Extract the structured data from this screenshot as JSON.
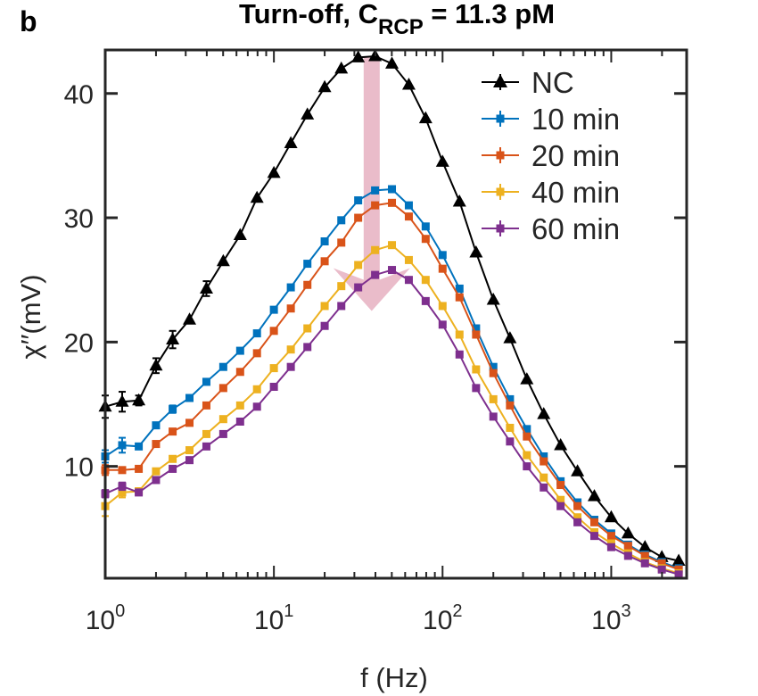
{
  "panel_label": "b",
  "title_main": "Turn-off, C",
  "title_sub": "RCP",
  "title_rest": " = 11.3 pM",
  "colors": {
    "NC": "#000000",
    "10 min": "#0072BD",
    "20 min": "#D95319",
    "40 min": "#EDB120",
    "60 min": "#7E2F8E",
    "arrow": "#E8B5C4",
    "axis": "#262626"
  },
  "chart_data": {
    "type": "line",
    "xscale": "log",
    "xlim": [
      1,
      2800
    ],
    "ylim": [
      1,
      43.5
    ],
    "xlabel": "f (Hz)",
    "ylabel": "χ′′(mV)",
    "x_ticks": [
      {
        "base": "10",
        "exp": "0",
        "value": 1
      },
      {
        "base": "10",
        "exp": "1",
        "value": 10
      },
      {
        "base": "10",
        "exp": "2",
        "value": 100
      },
      {
        "base": "10",
        "exp": "3",
        "value": 1000
      }
    ],
    "y_ticks": [
      "10",
      "20",
      "30",
      "40"
    ],
    "grid": false,
    "legend_position": "top-right",
    "x": [
      1,
      1.26,
      1.58,
      2.0,
      2.51,
      3.16,
      3.98,
      5.01,
      6.31,
      7.94,
      10.0,
      12.6,
      15.8,
      20.0,
      25.1,
      31.6,
      39.8,
      50.1,
      63.1,
      79.4,
      100,
      126,
      158,
      200,
      251,
      316,
      398,
      501,
      631,
      794,
      1000,
      1259,
      1585,
      1995,
      2512
    ],
    "series": [
      {
        "name": "NC",
        "marker": "triangle",
        "values": [
          14.8,
          15.2,
          15.3,
          18.1,
          20.2,
          21.8,
          24.3,
          26.5,
          28.6,
          31.6,
          33.6,
          36.0,
          38.3,
          40.5,
          42.0,
          42.9,
          43.0,
          42.4,
          40.7,
          38.0,
          34.5,
          31.3,
          27.2,
          23.4,
          20.3,
          17.0,
          14.2,
          11.7,
          9.6,
          7.6,
          5.9,
          4.6,
          3.5,
          2.7,
          2.4
        ]
      },
      {
        "name": "10 min",
        "marker": "square",
        "values": [
          10.8,
          11.7,
          11.6,
          13.3,
          14.6,
          15.5,
          16.8,
          18.0,
          19.3,
          20.7,
          22.6,
          24.4,
          26.3,
          28.1,
          29.8,
          31.4,
          32.2,
          32.3,
          31.0,
          29.3,
          27.0,
          24.3,
          21.1,
          18.0,
          15.4,
          13.0,
          10.8,
          8.8,
          7.1,
          5.7,
          4.6,
          3.7,
          2.9,
          2.3,
          1.8
        ]
      },
      {
        "name": "20 min",
        "marker": "square",
        "values": [
          9.7,
          9.7,
          9.8,
          11.8,
          12.8,
          13.5,
          14.9,
          16.3,
          17.6,
          19.1,
          20.9,
          22.7,
          24.6,
          26.5,
          28.0,
          30.0,
          31.0,
          31.2,
          30.1,
          28.3,
          25.9,
          23.6,
          20.6,
          17.5,
          14.9,
          12.4,
          10.4,
          8.5,
          6.8,
          5.5,
          4.4,
          3.6,
          2.8,
          2.2,
          1.7
        ]
      },
      {
        "name": "40 min",
        "marker": "square",
        "values": [
          6.8,
          7.9,
          8.0,
          9.6,
          10.6,
          11.3,
          12.6,
          13.8,
          14.9,
          16.2,
          17.9,
          19.4,
          21.1,
          22.9,
          24.5,
          26.2,
          27.4,
          27.8,
          26.6,
          25.0,
          22.9,
          20.6,
          17.8,
          15.4,
          13.1,
          10.9,
          9.1,
          7.3,
          5.9,
          4.7,
          3.8,
          3.0,
          2.3,
          1.8,
          1.4
        ]
      },
      {
        "name": "60 min",
        "marker": "square",
        "values": [
          7.8,
          8.4,
          7.9,
          8.9,
          9.8,
          10.5,
          11.6,
          12.6,
          13.6,
          14.8,
          16.4,
          18.0,
          19.6,
          21.3,
          22.9,
          24.4,
          25.4,
          25.8,
          25.0,
          23.3,
          21.4,
          19.0,
          16.3,
          14.0,
          12.0,
          10.0,
          8.3,
          6.8,
          5.5,
          4.4,
          3.5,
          2.8,
          2.2,
          1.7,
          1.3
        ]
      }
    ],
    "error_bars": {
      "NC": [
        0.9,
        0.8,
        0.4,
        0.6,
        0.7,
        0,
        0.6,
        0,
        0,
        0,
        0,
        0,
        0,
        0,
        0,
        0,
        0,
        0,
        0,
        0,
        0,
        0,
        0,
        0,
        0,
        0,
        0,
        0,
        0,
        0,
        0,
        0,
        0,
        0,
        0
      ],
      "10 min": [
        0.5,
        0.6,
        0,
        0,
        0.3,
        0,
        0,
        0,
        0,
        0,
        0,
        0,
        0,
        0,
        0,
        0,
        0,
        0,
        0,
        0,
        0,
        0,
        0,
        0,
        0,
        0,
        0,
        0,
        0,
        0,
        0,
        0,
        0,
        0,
        0
      ],
      "20 min": [
        0.4,
        0,
        0,
        0,
        0,
        0,
        0,
        0,
        0,
        0,
        0,
        0,
        0,
        0,
        0,
        0,
        0,
        0,
        0,
        0,
        0,
        0,
        0,
        0,
        0,
        0,
        0,
        0,
        0,
        0,
        0,
        0,
        0,
        0,
        0
      ],
      "40 min": [
        0.8,
        0.4,
        0,
        0,
        0,
        0,
        0,
        0,
        0,
        0,
        0,
        0,
        0,
        0,
        0,
        0,
        0,
        0,
        0,
        0,
        0,
        0,
        0,
        0,
        0,
        0,
        0,
        0,
        0,
        0,
        0,
        0,
        0,
        0,
        0
      ],
      "60 min": [
        0.3,
        0.3,
        0,
        0,
        0,
        0,
        0,
        0,
        0,
        0,
        0,
        0,
        0,
        0,
        0,
        0,
        0,
        0,
        0,
        0,
        0,
        0,
        0,
        0,
        0,
        0,
        0,
        0,
        0,
        0,
        0,
        0,
        0,
        0,
        0
      ]
    },
    "annotation_arrow": {
      "x": 38,
      "y_from": 43,
      "y_to": 22.5
    }
  }
}
